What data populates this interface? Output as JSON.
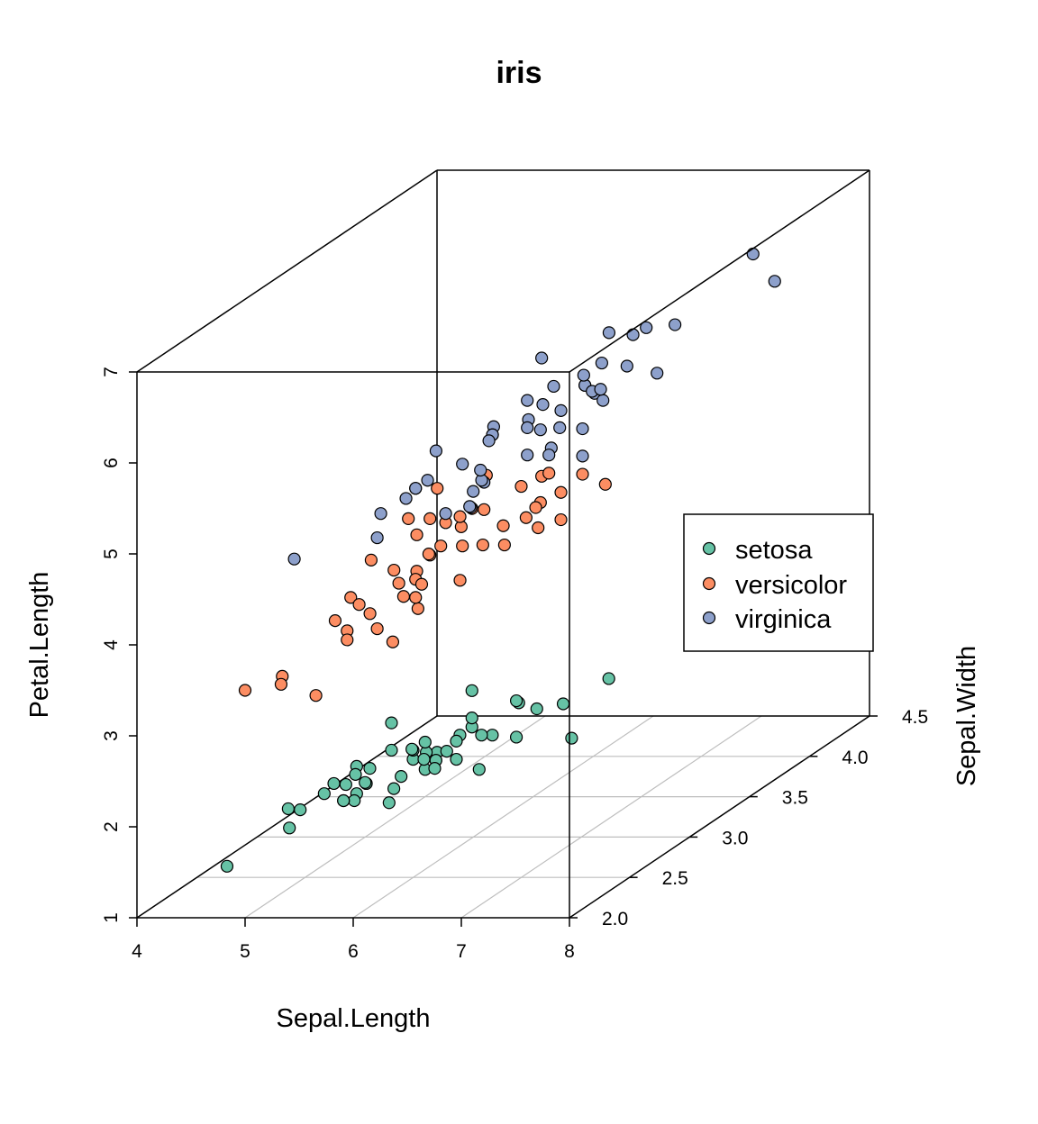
{
  "chart_data": {
    "type": "scatter",
    "projection": "3d-box",
    "title": "iris",
    "xlabel": "Sepal.Length",
    "ylabel": "Sepal.Width",
    "zlabel": "Petal.Length",
    "xlim": [
      4,
      8
    ],
    "ylim": [
      2.0,
      4.5
    ],
    "zlim": [
      1,
      7
    ],
    "x_ticks": [
      "4",
      "5",
      "6",
      "7",
      "8"
    ],
    "y_ticks": [
      "2.0",
      "2.5",
      "3.0",
      "3.5",
      "4.0",
      "4.5"
    ],
    "z_ticks": [
      "1",
      "2",
      "3",
      "4",
      "5",
      "6",
      "7"
    ],
    "grid": "floor",
    "legend_position": "right",
    "series": [
      {
        "name": "setosa",
        "color": "#66c2a5",
        "points": [
          [
            5.1,
            3.5,
            1.4
          ],
          [
            4.9,
            3.0,
            1.4
          ],
          [
            4.7,
            3.2,
            1.3
          ],
          [
            4.6,
            3.1,
            1.5
          ],
          [
            5.0,
            3.6,
            1.4
          ],
          [
            5.4,
            3.9,
            1.7
          ],
          [
            4.6,
            3.4,
            1.4
          ],
          [
            5.0,
            3.4,
            1.5
          ],
          [
            4.4,
            2.9,
            1.4
          ],
          [
            4.9,
            3.1,
            1.5
          ],
          [
            5.4,
            3.7,
            1.5
          ],
          [
            4.8,
            3.4,
            1.6
          ],
          [
            4.8,
            3.0,
            1.4
          ],
          [
            4.3,
            3.0,
            1.1
          ],
          [
            5.8,
            4.0,
            1.2
          ],
          [
            5.7,
            4.4,
            1.5
          ],
          [
            5.4,
            3.9,
            1.3
          ],
          [
            5.1,
            3.5,
            1.4
          ],
          [
            5.7,
            3.8,
            1.7
          ],
          [
            5.1,
            3.8,
            1.5
          ],
          [
            5.4,
            3.4,
            1.7
          ],
          [
            5.1,
            3.7,
            1.5
          ],
          [
            4.6,
            3.6,
            1.0
          ],
          [
            5.1,
            3.3,
            1.7
          ],
          [
            4.8,
            3.4,
            1.9
          ],
          [
            5.0,
            3.0,
            1.6
          ],
          [
            5.0,
            3.4,
            1.6
          ],
          [
            5.2,
            3.5,
            1.5
          ],
          [
            5.2,
            3.4,
            1.4
          ],
          [
            4.7,
            3.2,
            1.6
          ],
          [
            4.8,
            3.1,
            1.6
          ],
          [
            5.4,
            3.4,
            1.5
          ],
          [
            5.2,
            4.1,
            1.5
          ],
          [
            5.5,
            4.2,
            1.4
          ],
          [
            4.9,
            3.1,
            1.5
          ],
          [
            5.0,
            3.2,
            1.2
          ],
          [
            5.5,
            3.5,
            1.3
          ],
          [
            4.9,
            3.6,
            1.4
          ],
          [
            4.4,
            3.0,
            1.3
          ],
          [
            5.1,
            3.4,
            1.5
          ],
          [
            5.0,
            3.5,
            1.3
          ],
          [
            4.5,
            2.3,
            1.3
          ],
          [
            4.4,
            3.2,
            1.3
          ],
          [
            5.0,
            3.5,
            1.6
          ],
          [
            5.1,
            3.8,
            1.9
          ],
          [
            4.8,
            3.0,
            1.4
          ],
          [
            5.1,
            3.8,
            1.6
          ],
          [
            4.6,
            3.2,
            1.4
          ],
          [
            5.3,
            3.7,
            1.5
          ],
          [
            5.0,
            3.3,
            1.4
          ]
        ]
      },
      {
        "name": "versicolor",
        "color": "#fc8d62",
        "points": [
          [
            7.0,
            3.2,
            4.7
          ],
          [
            6.4,
            3.2,
            4.5
          ],
          [
            6.9,
            3.1,
            4.9
          ],
          [
            5.5,
            2.3,
            4.0
          ],
          [
            6.5,
            2.8,
            4.6
          ],
          [
            5.7,
            2.8,
            4.5
          ],
          [
            6.3,
            3.3,
            4.7
          ],
          [
            4.9,
            2.4,
            3.3
          ],
          [
            6.6,
            2.9,
            4.6
          ],
          [
            5.2,
            2.7,
            3.9
          ],
          [
            5.0,
            2.0,
            3.5
          ],
          [
            5.9,
            3.0,
            4.2
          ],
          [
            6.0,
            2.2,
            4.0
          ],
          [
            6.1,
            2.9,
            4.7
          ],
          [
            5.6,
            2.9,
            3.6
          ],
          [
            6.7,
            3.1,
            4.4
          ],
          [
            5.6,
            3.0,
            4.5
          ],
          [
            5.8,
            2.7,
            4.1
          ],
          [
            6.2,
            2.2,
            4.5
          ],
          [
            5.6,
            2.5,
            3.9
          ],
          [
            5.9,
            3.2,
            4.8
          ],
          [
            6.1,
            2.8,
            4.0
          ],
          [
            6.3,
            2.5,
            4.9
          ],
          [
            6.1,
            2.8,
            4.7
          ],
          [
            6.4,
            2.9,
            4.3
          ],
          [
            6.6,
            3.0,
            4.4
          ],
          [
            6.8,
            2.8,
            4.8
          ],
          [
            6.7,
            3.0,
            5.0
          ],
          [
            6.0,
            2.9,
            4.5
          ],
          [
            5.7,
            2.6,
            3.5
          ],
          [
            5.5,
            2.4,
            3.8
          ],
          [
            5.5,
            2.4,
            3.7
          ],
          [
            5.8,
            2.7,
            3.9
          ],
          [
            6.0,
            2.7,
            5.1
          ],
          [
            5.4,
            3.0,
            4.5
          ],
          [
            6.0,
            3.4,
            4.5
          ],
          [
            6.7,
            3.1,
            4.7
          ],
          [
            6.3,
            2.3,
            4.4
          ],
          [
            5.6,
            3.0,
            4.1
          ],
          [
            5.5,
            2.5,
            4.0
          ],
          [
            5.5,
            2.6,
            4.4
          ],
          [
            6.1,
            3.0,
            4.6
          ],
          [
            5.8,
            2.6,
            4.0
          ],
          [
            5.0,
            2.3,
            3.3
          ],
          [
            5.6,
            2.7,
            4.2
          ],
          [
            5.7,
            3.0,
            4.2
          ],
          [
            5.7,
            2.9,
            4.2
          ],
          [
            6.2,
            2.9,
            4.3
          ],
          [
            5.1,
            2.5,
            3.0
          ],
          [
            5.7,
            2.8,
            4.1
          ]
        ]
      },
      {
        "name": "virginica",
        "color": "#8da0cb",
        "points": [
          [
            6.3,
            3.3,
            6.0
          ],
          [
            5.8,
            2.7,
            5.1
          ],
          [
            7.1,
            3.0,
            5.9
          ],
          [
            6.3,
            2.9,
            5.6
          ],
          [
            6.5,
            3.0,
            5.8
          ],
          [
            7.6,
            3.0,
            6.6
          ],
          [
            4.9,
            2.5,
            4.5
          ],
          [
            7.3,
            2.9,
            6.3
          ],
          [
            6.7,
            2.5,
            5.8
          ],
          [
            7.2,
            3.6,
            6.1
          ],
          [
            6.5,
            3.2,
            5.1
          ],
          [
            6.4,
            2.7,
            5.3
          ],
          [
            6.8,
            3.0,
            5.5
          ],
          [
            5.7,
            2.5,
            5.0
          ],
          [
            5.8,
            2.8,
            5.1
          ],
          [
            6.4,
            3.2,
            5.3
          ],
          [
            6.5,
            3.0,
            5.5
          ],
          [
            7.7,
            3.8,
            6.7
          ],
          [
            7.7,
            2.6,
            6.9
          ],
          [
            6.0,
            2.2,
            5.0
          ],
          [
            6.9,
            3.2,
            5.7
          ],
          [
            5.6,
            2.8,
            4.9
          ],
          [
            7.7,
            2.8,
            6.7
          ],
          [
            6.3,
            2.7,
            4.9
          ],
          [
            6.7,
            3.3,
            5.7
          ],
          [
            7.2,
            3.2,
            6.0
          ],
          [
            6.2,
            2.8,
            4.8
          ],
          [
            6.1,
            3.0,
            4.9
          ],
          [
            6.4,
            2.8,
            5.6
          ],
          [
            7.2,
            3.0,
            5.8
          ],
          [
            7.4,
            2.8,
            6.1
          ],
          [
            7.9,
            3.8,
            6.4
          ],
          [
            6.4,
            2.8,
            5.6
          ],
          [
            6.3,
            2.8,
            5.1
          ],
          [
            6.1,
            2.6,
            5.6
          ],
          [
            7.7,
            3.0,
            6.1
          ],
          [
            6.3,
            3.4,
            5.6
          ],
          [
            6.4,
            3.1,
            5.5
          ],
          [
            6.0,
            3.0,
            4.8
          ],
          [
            6.9,
            3.1,
            5.4
          ],
          [
            6.7,
            3.1,
            5.6
          ],
          [
            6.9,
            3.1,
            5.1
          ],
          [
            5.8,
            2.7,
            5.1
          ],
          [
            6.8,
            3.2,
            5.9
          ],
          [
            6.7,
            3.3,
            5.7
          ],
          [
            6.7,
            3.0,
            5.2
          ],
          [
            6.3,
            2.5,
            5.0
          ],
          [
            6.5,
            3.0,
            5.2
          ],
          [
            6.2,
            3.4,
            5.4
          ],
          [
            5.9,
            3.0,
            5.1
          ]
        ]
      }
    ]
  }
}
